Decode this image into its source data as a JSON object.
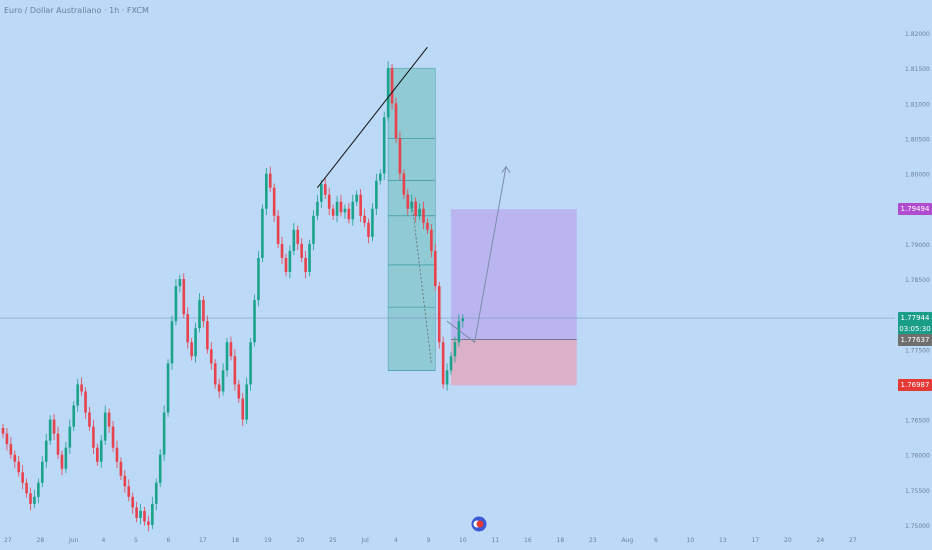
{
  "header": {
    "title": "Euro / Dollar Australiano · 1h · FXCM"
  },
  "colors": {
    "background": "#bcd9f7",
    "up": "#1aa38a",
    "down": "#e8424d",
    "axis_text": "#6b7f99"
  },
  "chart_data": {
    "type": "candlestick",
    "price_scale": {
      "ticks": [
        "1.82000",
        "1.81500",
        "1.81000",
        "1.80500",
        "1.80000",
        "1.79500",
        "1.79000",
        "1.78500",
        "1.78000",
        "1.77500",
        "1.77000",
        "1.76500",
        "1.76000",
        "1.75500",
        "1.75000"
      ],
      "range": [
        1.749,
        1.823
      ]
    },
    "time_axis": {
      "labels": [
        "27",
        "28",
        "Jun",
        "4",
        "5",
        "6",
        "17",
        "18",
        "19",
        "20",
        "25",
        "Jul",
        "4",
        "9",
        "10",
        "11",
        "16",
        "18",
        "23",
        "Aug",
        "6",
        "10",
        "13",
        "17",
        "20",
        "24",
        "27"
      ]
    },
    "price_tags": [
      {
        "label": "1.79494",
        "value": 1.79494,
        "color": "#b04cd0"
      },
      {
        "label": "1.77944",
        "value": 1.77944,
        "color": "#1a9e8a",
        "countdown": "03:05:30"
      },
      {
        "label": "1.77637",
        "value": 1.77637,
        "color": "#6f6f6f"
      },
      {
        "label": "1.76987",
        "value": 1.76987,
        "color": "#e53935"
      }
    ],
    "current_price": 1.77944,
    "candles_close": [
      1.763,
      1.7615,
      1.76,
      1.759,
      1.7575,
      1.756,
      1.7545,
      1.753,
      1.754,
      1.756,
      1.759,
      1.762,
      1.765,
      1.763,
      1.76,
      1.758,
      1.761,
      1.764,
      1.767,
      1.77,
      1.769,
      1.766,
      1.764,
      1.761,
      1.759,
      1.762,
      1.766,
      1.764,
      1.761,
      1.759,
      1.757,
      1.7555,
      1.754,
      1.7525,
      1.751,
      1.752,
      1.7505,
      1.75,
      1.753,
      1.756,
      1.76,
      1.766,
      1.773,
      1.779,
      1.784,
      1.785,
      1.78,
      1.776,
      1.774,
      1.778,
      1.782,
      1.779,
      1.775,
      1.773,
      1.77,
      1.769,
      1.772,
      1.776,
      1.774,
      1.77,
      1.768,
      1.765,
      1.77,
      1.776,
      1.782,
      1.788,
      1.795,
      1.8,
      1.798,
      1.794,
      1.79,
      1.788,
      1.786,
      1.789,
      1.792,
      1.79,
      1.788,
      1.786,
      1.79,
      1.794,
      1.796,
      1.7985,
      1.797,
      1.795,
      1.794,
      1.796,
      1.7945,
      1.795,
      1.7935,
      1.796,
      1.797,
      1.794,
      1.793,
      1.791,
      1.795,
      1.799,
      1.8,
      1.808,
      1.815,
      1.81,
      1.805,
      1.8,
      1.797,
      1.795,
      1.796,
      1.794,
      1.795,
      1.793,
      1.792,
      1.789,
      1.784,
      1.776,
      1.77,
      1.772,
      1.774,
      1.776,
      1.779,
      1.7794
    ],
    "drawings": {
      "trendline": {
        "from": [
          80,
          1.798
        ],
        "to": [
          108,
          1.818
        ]
      },
      "fib_box": {
        "x": [
          98,
          110
        ],
        "y": [
          1.772,
          1.815
        ],
        "levels": [
          1.805,
          1.799,
          1.794,
          1.787,
          1.781,
          1.772
        ]
      },
      "long_position": {
        "x": [
          114,
          146
        ],
        "entry": 1.77637,
        "target": 1.79494,
        "stop": 1.76987
      },
      "projection": [
        [
          113,
          1.779
        ],
        [
          120,
          1.776
        ],
        [
          128,
          1.801
        ]
      ]
    }
  }
}
